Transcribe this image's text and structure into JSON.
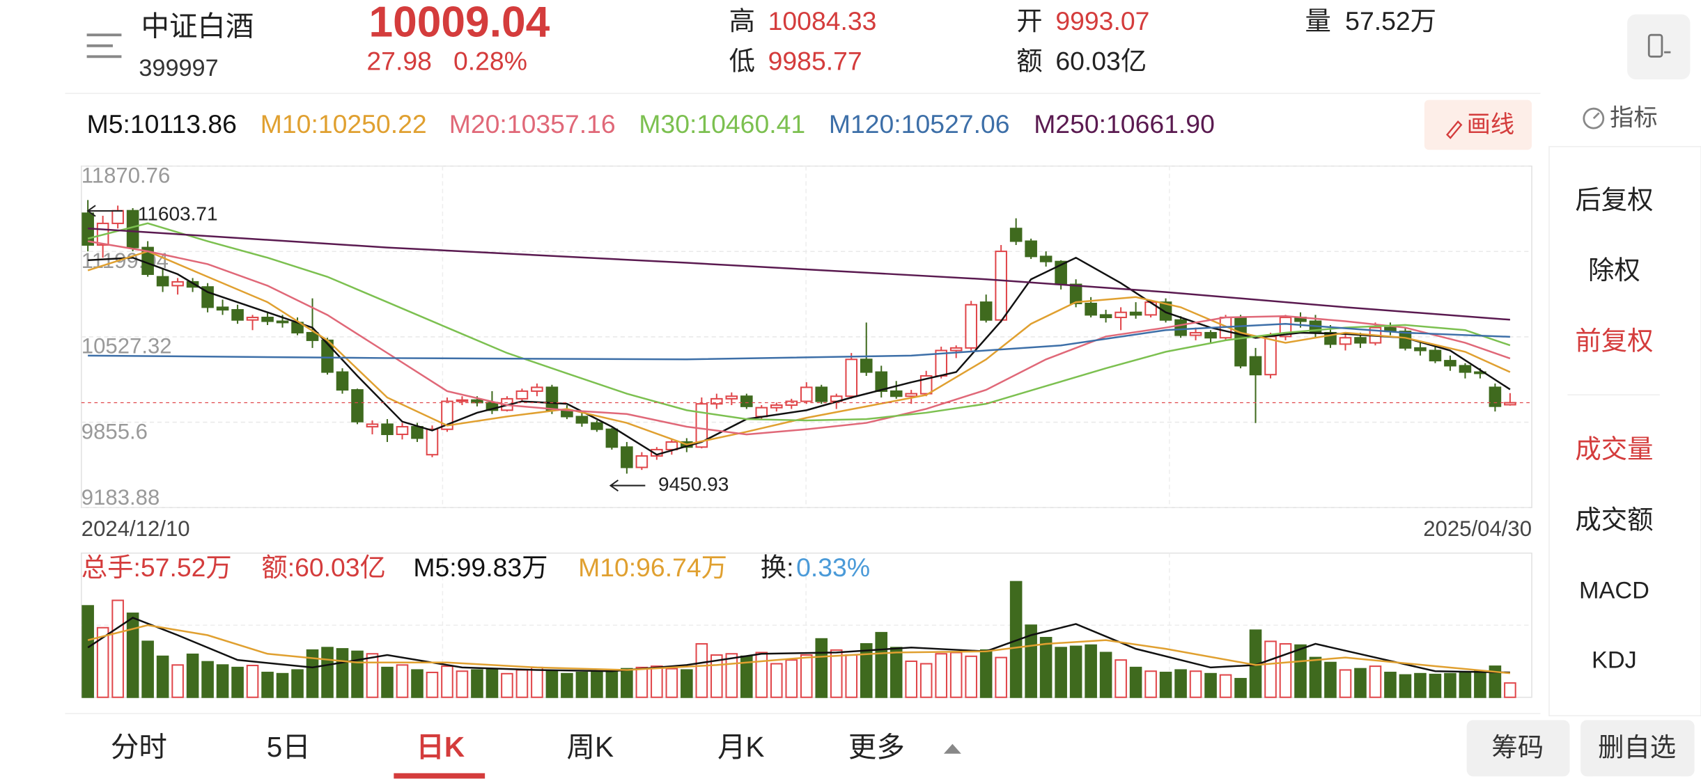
{
  "header": {
    "name": "中证白酒",
    "code": "399997"
  },
  "quote": {
    "price": "10009.04",
    "change": "27.98",
    "change_pct": "0.28%",
    "high_label": "高",
    "high": "10084.33",
    "low_label": "低",
    "low": "9985.77",
    "open_label": "开",
    "open": "9993.07",
    "amount_label": "额",
    "amount": "60.03亿",
    "volume_label": "量",
    "volume": "57.52万"
  },
  "toolbar": {
    "draw": "画线",
    "indicator": "指标"
  },
  "side_menu": [
    "后复权",
    "除权",
    "前复权",
    "成交量",
    "成交额",
    "MACD",
    "KDJ"
  ],
  "tabs": [
    "分时",
    "5日",
    "日K",
    "周K",
    "月K",
    "更多"
  ],
  "actions": [
    "筹码",
    "删自选"
  ],
  "chart_data": {
    "type": "candlestick",
    "up_color": "#e0464a",
    "down_color": "#3f6a1e",
    "grid": true,
    "ylim": [
      9183.88,
      11870.76
    ],
    "yticks": [
      11870.76,
      11199.04,
      10527.32,
      9855.6,
      9183.88
    ],
    "xlim": [
      0,
      95
    ],
    "xticks": [
      {
        "value": 0,
        "label": "2024/12/10"
      },
      {
        "value": 95,
        "label": "2025/04/30"
      }
    ],
    "candles": [
      [
        11500,
        11603.71,
        11200,
        11250
      ],
      [
        11250,
        11480,
        11150,
        11420
      ],
      [
        11420,
        11560,
        11380,
        11520
      ],
      [
        11520,
        11540,
        11200,
        11230
      ],
      [
        11230,
        11280,
        11000,
        11020
      ],
      [
        11000,
        11060,
        10880,
        10930
      ],
      [
        10930,
        10990,
        10860,
        10960
      ],
      [
        10960,
        10990,
        10880,
        10920
      ],
      [
        10920,
        10950,
        10720,
        10760
      ],
      [
        10760,
        10820,
        10700,
        10740
      ],
      [
        10740,
        10780,
        10630,
        10660
      ],
      [
        10660,
        10700,
        10580,
        10680
      ],
      [
        10680,
        10720,
        10620,
        10650
      ],
      [
        10650,
        10700,
        10600,
        10640
      ],
      [
        10640,
        10680,
        10540,
        10560
      ],
      [
        10560,
        10830,
        10440,
        10500
      ],
      [
        10500,
        10520,
        10230,
        10250
      ],
      [
        10250,
        10280,
        10080,
        10110
      ],
      [
        10110,
        10120,
        9840,
        9860
      ],
      [
        9820,
        9870,
        9760,
        9840
      ],
      [
        9840,
        9880,
        9700,
        9760
      ],
      [
        9760,
        9850,
        9720,
        9820
      ],
      [
        9820,
        9850,
        9700,
        9730
      ],
      [
        9600,
        9830,
        9580,
        9800
      ],
      [
        9800,
        10050,
        9780,
        10020
      ],
      [
        10020,
        10060,
        9990,
        10030
      ],
      [
        10030,
        10060,
        9980,
        10010
      ],
      [
        10010,
        10100,
        9920,
        9950
      ],
      [
        9950,
        10060,
        9940,
        10040
      ],
      [
        10040,
        10120,
        10020,
        10100
      ],
      [
        10100,
        10160,
        10060,
        10130
      ],
      [
        10130,
        10150,
        9920,
        9950
      ],
      [
        9950,
        9990,
        9880,
        9900
      ],
      [
        9900,
        9930,
        9820,
        9850
      ],
      [
        9850,
        9870,
        9780,
        9800
      ],
      [
        9800,
        9810,
        9640,
        9660
      ],
      [
        9660,
        9700,
        9450.93,
        9500
      ],
      [
        9500,
        9620,
        9480,
        9590
      ],
      [
        9590,
        9660,
        9560,
        9640
      ],
      [
        9640,
        9720,
        9600,
        9700
      ],
      [
        9700,
        9730,
        9620,
        9660
      ],
      [
        9660,
        10050,
        9650,
        10000
      ],
      [
        10000,
        10080,
        9960,
        10040
      ],
      [
        10040,
        10090,
        9990,
        10060
      ],
      [
        10060,
        10080,
        9960,
        9980
      ],
      [
        9900,
        9990,
        9880,
        9970
      ],
      [
        9970,
        10010,
        9940,
        9990
      ],
      [
        9990,
        10040,
        9960,
        10020
      ],
      [
        10020,
        10170,
        10000,
        10130
      ],
      [
        10130,
        10150,
        10000,
        10020
      ],
      [
        10020,
        10080,
        9960,
        10060
      ],
      [
        10060,
        10400,
        10040,
        10350
      ],
      [
        10350,
        10640,
        10220,
        10250
      ],
      [
        10250,
        10300,
        10050,
        10100
      ],
      [
        10100,
        10180,
        10040,
        10060
      ],
      [
        10060,
        10110,
        10000,
        10080
      ],
      [
        10080,
        10260,
        10060,
        10220
      ],
      [
        10220,
        10450,
        10200,
        10420
      ],
      [
        10420,
        10460,
        10360,
        10440
      ],
      [
        10440,
        10810,
        10420,
        10780
      ],
      [
        10800,
        10860,
        10640,
        10660
      ],
      [
        10660,
        11250,
        10640,
        11200
      ],
      [
        11380,
        11460,
        11250,
        11280
      ],
      [
        11280,
        11300,
        11140,
        11160
      ],
      [
        11160,
        11200,
        11080,
        11120
      ],
      [
        11120,
        11130,
        10900,
        10940
      ],
      [
        10940,
        10980,
        10760,
        10790
      ],
      [
        10790,
        10840,
        10680,
        10700
      ],
      [
        10700,
        10740,
        10640,
        10680
      ],
      [
        10680,
        10760,
        10580,
        10720
      ],
      [
        10720,
        10800,
        10670,
        10700
      ],
      [
        10700,
        10820,
        10680,
        10800
      ],
      [
        10800,
        10830,
        10640,
        10660
      ],
      [
        10660,
        10690,
        10520,
        10540
      ],
      [
        10540,
        10600,
        10500,
        10560
      ],
      [
        10560,
        10580,
        10480,
        10520
      ],
      [
        10520,
        10700,
        10500,
        10680
      ],
      [
        10680,
        10700,
        10280,
        10300
      ],
      [
        10370,
        10440,
        9849,
        10230
      ],
      [
        10230,
        10560,
        10200,
        10530
      ],
      [
        10530,
        10700,
        10500,
        10680
      ],
      [
        10680,
        10720,
        10600,
        10650
      ],
      [
        10650,
        10700,
        10520,
        10560
      ],
      [
        10560,
        10620,
        10440,
        10470
      ],
      [
        10470,
        10550,
        10420,
        10520
      ],
      [
        10520,
        10560,
        10440,
        10480
      ],
      [
        10480,
        10640,
        10460,
        10600
      ],
      [
        10600,
        10640,
        10540,
        10570
      ],
      [
        10570,
        10600,
        10420,
        10440
      ],
      [
        10440,
        10480,
        10380,
        10420
      ],
      [
        10420,
        10460,
        10320,
        10340
      ],
      [
        10340,
        10380,
        10260,
        10300
      ],
      [
        10300,
        10320,
        10200,
        10250
      ],
      [
        10250,
        10280,
        10200,
        10240
      ],
      [
        10130,
        10160,
        9940,
        9981.06
      ],
      [
        9993.07,
        10084.33,
        9985.77,
        10009.04
      ]
    ],
    "ma_series": [
      {
        "name": "M5:10113.86",
        "color": "#111111",
        "x": [
          0,
          3,
          6,
          8,
          12,
          15,
          18,
          21,
          23,
          26,
          29,
          32,
          35,
          38,
          41,
          44,
          48,
          51,
          55,
          58,
          61,
          63,
          66,
          69,
          72,
          75,
          78,
          81,
          84,
          88,
          91,
          95
        ],
        "values": [
          11130,
          11150,
          11020,
          10880,
          10720,
          10600,
          10220,
          9860,
          9790,
          9930,
          10020,
          10000,
          9820,
          9600,
          9700,
          9880,
          9950,
          10050,
          10170,
          10250,
          10650,
          10980,
          11150,
          10950,
          10720,
          10600,
          10520,
          10560,
          10550,
          10520,
          10420,
          10113.86
        ]
      },
      {
        "name": "M10:10250.22",
        "color": "#e0a030",
        "x": [
          0,
          4,
          8,
          12,
          16,
          20,
          24,
          28,
          32,
          36,
          40,
          44,
          48,
          52,
          56,
          60,
          63,
          66,
          70,
          73,
          77,
          80,
          84,
          88,
          92,
          95
        ],
        "values": [
          11050,
          11200,
          11000,
          10800,
          10500,
          10050,
          9830,
          9900,
          9960,
          9850,
          9680,
          9780,
          9890,
          9980,
          10070,
          10350,
          10630,
          10800,
          10840,
          10760,
          10560,
          10480,
          10560,
          10520,
          10410,
          10250.22
        ]
      },
      {
        "name": "M20:10357.16",
        "color": "#e06878",
        "x": [
          0,
          4,
          8,
          12,
          16,
          20,
          24,
          28,
          32,
          36,
          40,
          44,
          48,
          52,
          56,
          60,
          64,
          68,
          72,
          76,
          80,
          84,
          88,
          92,
          95
        ],
        "values": [
          11280,
          11200,
          11100,
          10930,
          10700,
          10400,
          10100,
          9990,
          9950,
          9920,
          9820,
          9760,
          9800,
          9850,
          9960,
          10110,
          10350,
          10530,
          10600,
          10680,
          10690,
          10650,
          10600,
          10480,
          10357.16
        ]
      },
      {
        "name": "M30:10460.41",
        "color": "#7cc050",
        "x": [
          0,
          4,
          8,
          12,
          16,
          20,
          24,
          28,
          32,
          36,
          40,
          44,
          48,
          52,
          56,
          60,
          64,
          68,
          72,
          76,
          80,
          84,
          88,
          92,
          95
        ],
        "values": [
          11300,
          11420,
          11280,
          11150,
          11000,
          10800,
          10600,
          10400,
          10240,
          10080,
          9950,
          9880,
          9870,
          9880,
          9930,
          10000,
          10140,
          10280,
          10410,
          10500,
          10560,
          10600,
          10620,
          10580,
          10460.41
        ]
      },
      {
        "name": "M120:10527.06",
        "color": "#3d6fa8",
        "x": [
          0,
          20,
          40,
          55,
          65,
          72,
          80,
          88,
          95
        ],
        "values": [
          10380,
          10360,
          10350,
          10380,
          10460,
          10580,
          10630,
          10560,
          10527.06
        ]
      },
      {
        "name": "M250:10661.90",
        "color": "#5a1a50",
        "x": [
          0,
          20,
          40,
          60,
          72,
          84,
          95
        ],
        "values": [
          11380,
          11230,
          11110,
          10980,
          10880,
          10760,
          10661.9
        ]
      }
    ],
    "volume": {
      "type": "bar",
      "ylim": [
        0,
        580
      ],
      "total_label": "总手:57.52万",
      "amount_label": "额:60.03亿",
      "turnover_label": "换:",
      "turnover": "0.33%",
      "values": [
        368,
        280,
        390,
        338,
        225,
        165,
        130,
        173,
        143,
        130,
        120,
        128,
        100,
        95,
        110,
        190,
        200,
        195,
        185,
        175,
        120,
        130,
        110,
        100,
        125,
        105,
        110,
        115,
        95,
        110,
        120,
        105,
        95,
        100,
        100,
        110,
        115,
        120,
        125,
        115,
        110,
        215,
        170,
        175,
        165,
        180,
        135,
        150,
        170,
        235,
        190,
        170,
        215,
        260,
        200,
        145,
        135,
        175,
        180,
        165,
        190,
        160,
        465,
        290,
        240,
        200,
        205,
        210,
        180,
        150,
        120,
        105,
        100,
        110,
        105,
        95,
        90,
        75,
        270,
        225,
        215,
        210,
        160,
        140,
        110,
        115,
        125,
        100,
        90,
        95,
        92,
        95,
        100,
        105,
        125,
        57.52
      ],
      "ma_series": [
        {
          "name": "M5:99.83万",
          "color": "#111111",
          "x": [
            0,
            3,
            6,
            10,
            15,
            20,
            25,
            30,
            35,
            40,
            45,
            50,
            55,
            60,
            63,
            66,
            70,
            75,
            78,
            82,
            86,
            90,
            95
          ],
          "values": [
            200,
            320,
            250,
            150,
            120,
            170,
            120,
            110,
            105,
            130,
            175,
            180,
            200,
            185,
            250,
            295,
            195,
            120,
            130,
            215,
            160,
            105,
            99.83
          ]
        },
        {
          "name": "M10:96.74万",
          "color": "#e0a030",
          "x": [
            0,
            4,
            8,
            12,
            18,
            24,
            30,
            36,
            42,
            48,
            54,
            60,
            64,
            68,
            72,
            78,
            84,
            90,
            95
          ],
          "values": [
            230,
            290,
            250,
            175,
            140,
            140,
            120,
            110,
            130,
            160,
            180,
            185,
            215,
            230,
            195,
            130,
            160,
            125,
            96.74
          ]
        }
      ]
    }
  }
}
